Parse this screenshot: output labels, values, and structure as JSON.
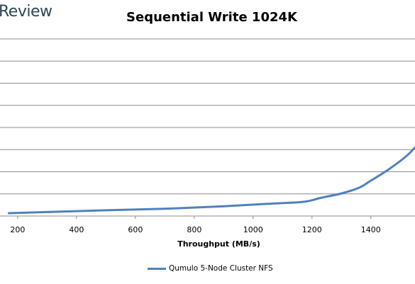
{
  "brand": {
    "text": "Review"
  },
  "chart_data": {
    "type": "line",
    "title": "Sequential Write 1024K",
    "xlabel": "Throughput (MB/s)",
    "ylabel": "",
    "xlim": [
      140,
      1550
    ],
    "ylim": [
      0,
      8
    ],
    "x_ticks": [
      "200",
      "400",
      "600",
      "800",
      "1000",
      "1200",
      "1400"
    ],
    "grid": {
      "horizontal": true,
      "vertical": false
    },
    "legend_position": "bottom",
    "colors": {
      "series": "#4f81bd",
      "grid": "#8c8c8c",
      "axis": "#8c8c8c"
    },
    "series": [
      {
        "name": "Qumulo 5-Node Cluster NFS",
        "x": [
          170,
          300,
          500,
          700,
          900,
          1050,
          1170,
          1230,
          1300,
          1360,
          1400,
          1460,
          1520,
          1550
        ],
        "y": [
          0.13,
          0.18,
          0.26,
          0.33,
          0.44,
          0.55,
          0.64,
          0.82,
          1.02,
          1.28,
          1.6,
          2.1,
          2.7,
          3.1
        ]
      }
    ]
  }
}
